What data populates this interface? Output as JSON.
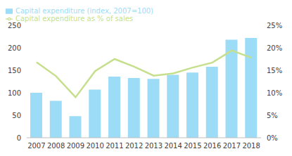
{
  "chart_data": {
    "type": "bar",
    "categories": [
      "2007",
      "2008",
      "2009",
      "2010",
      "2011",
      "2012",
      "2013",
      "2014",
      "2015",
      "2016",
      "2017",
      "2018"
    ],
    "series": [
      {
        "name": "Capital expenditure (index, 2007=100)",
        "type": "bar",
        "color": "#9ddcf7",
        "values": [
          100,
          82,
          48,
          107,
          136,
          133,
          131,
          140,
          145,
          158,
          218,
          222
        ]
      },
      {
        "name": "Capital expenditure as % of sales",
        "type": "line",
        "axis": "y2",
        "color": "#c6df8c",
        "marker": "none",
        "values": [
          16.8,
          13.7,
          9,
          14.8,
          17.5,
          15.8,
          13.8,
          14.3,
          15.6,
          16.7,
          19.4,
          17.8
        ]
      }
    ],
    "ylim": [
      0,
      250
    ],
    "yticks": [
      0,
      50,
      100,
      150,
      200,
      250
    ],
    "y2lim": [
      0,
      25
    ],
    "y2ticks": [
      {
        "value": 0,
        "label": "0%"
      },
      {
        "value": 5,
        "label": "5%"
      },
      {
        "value": 10,
        "label": "10%"
      },
      {
        "value": 15,
        "label": "15%"
      },
      {
        "value": 20,
        "label": "20%"
      },
      {
        "value": 25,
        "label": "25%"
      }
    ],
    "grid": false,
    "legend": "top-left"
  }
}
